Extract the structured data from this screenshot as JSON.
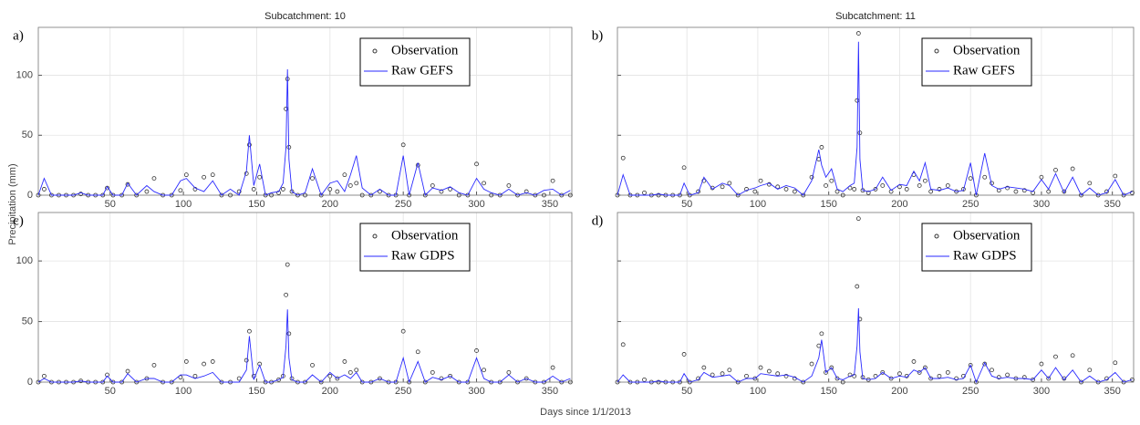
{
  "x_label": "Days since 1/1/2013",
  "y_label": "Precipitation (mm)",
  "chart_data": [
    {
      "type": "line",
      "title": "Subcatchment: 10",
      "panel_label": "a)",
      "legend": "upper right",
      "grid": true,
      "xlim": [
        1,
        365
      ],
      "ylim": [
        0,
        140
      ],
      "xticks": [
        50,
        100,
        150,
        200,
        250,
        300,
        350
      ],
      "yticks": [
        0,
        50,
        100
      ],
      "x": [
        1,
        5,
        10,
        15,
        20,
        25,
        30,
        35,
        40,
        45,
        48,
        52,
        58,
        62,
        68,
        75,
        80,
        86,
        92,
        98,
        102,
        108,
        114,
        120,
        126,
        132,
        138,
        143,
        145,
        148,
        152,
        156,
        160,
        165,
        168,
        170,
        171,
        172,
        174,
        178,
        183,
        188,
        194,
        200,
        205,
        210,
        214,
        218,
        222,
        228,
        234,
        240,
        245,
        250,
        254,
        260,
        265,
        270,
        276,
        282,
        288,
        294,
        300,
        305,
        310,
        316,
        322,
        328,
        334,
        340,
        346,
        352,
        358,
        364
      ],
      "series": [
        {
          "name": "Observation",
          "type": "scatter",
          "color": "#333333",
          "values": [
            0,
            5,
            0,
            0,
            0,
            0,
            1,
            0,
            0,
            0,
            6,
            0,
            0,
            9,
            0,
            3,
            14,
            0,
            0,
            4,
            17,
            5,
            15,
            17,
            0,
            0,
            3,
            18,
            42,
            5,
            15,
            0,
            0,
            2,
            5,
            72,
            97,
            40,
            3,
            0,
            0,
            14,
            0,
            5,
            3,
            17,
            8,
            10,
            0,
            0,
            3,
            0,
            0,
            42,
            0,
            25,
            0,
            8,
            3,
            5,
            0,
            0,
            26,
            10,
            0,
            0,
            8,
            0,
            3,
            0,
            0,
            12,
            0,
            0
          ]
        },
        {
          "name": "Raw GEFS",
          "type": "line",
          "color": "#2a2aff",
          "values": [
            0,
            14,
            0,
            0,
            0,
            0,
            2,
            0,
            0,
            0,
            7,
            0,
            0,
            10,
            0,
            8,
            3,
            0,
            0,
            12,
            14,
            6,
            3,
            12,
            0,
            5,
            0,
            20,
            50,
            8,
            26,
            0,
            2,
            3,
            10,
            40,
            105,
            30,
            3,
            0,
            2,
            22,
            0,
            10,
            12,
            3,
            17,
            33,
            6,
            0,
            5,
            0,
            0,
            33,
            0,
            27,
            0,
            6,
            4,
            7,
            2,
            0,
            14,
            5,
            2,
            0,
            5,
            0,
            2,
            0,
            4,
            5,
            0,
            4
          ]
        }
      ]
    },
    {
      "type": "line",
      "title": "Subcatchment: 11",
      "panel_label": "b)",
      "legend": "upper right",
      "grid": true,
      "xlim": [
        1,
        365
      ],
      "ylim": [
        0,
        140
      ],
      "xticks": [
        50,
        100,
        150,
        200,
        250,
        300,
        350
      ],
      "yticks": [
        0,
        50,
        100
      ],
      "x": [
        1,
        5,
        10,
        15,
        20,
        25,
        30,
        35,
        40,
        45,
        48,
        52,
        58,
        62,
        68,
        75,
        80,
        86,
        92,
        98,
        102,
        108,
        114,
        120,
        126,
        132,
        138,
        143,
        145,
        148,
        152,
        156,
        160,
        165,
        168,
        170,
        171,
        172,
        174,
        178,
        183,
        188,
        194,
        200,
        205,
        210,
        214,
        218,
        222,
        228,
        234,
        240,
        245,
        250,
        254,
        260,
        265,
        270,
        276,
        282,
        288,
        294,
        300,
        305,
        310,
        316,
        322,
        328,
        334,
        340,
        346,
        352,
        358,
        364
      ],
      "series": [
        {
          "name": "Observation",
          "type": "scatter",
          "color": "#333333",
          "values": [
            0,
            31,
            0,
            0,
            2,
            0,
            0,
            0,
            0,
            0,
            23,
            0,
            3,
            12,
            6,
            7,
            10,
            0,
            5,
            3,
            12,
            9,
            7,
            5,
            3,
            0,
            15,
            30,
            40,
            8,
            12,
            3,
            0,
            6,
            5,
            79,
            135,
            52,
            4,
            2,
            5,
            8,
            3,
            7,
            5,
            17,
            8,
            12,
            3,
            5,
            8,
            3,
            5,
            14,
            0,
            15,
            10,
            4,
            6,
            3,
            4,
            2,
            15,
            3,
            21,
            3,
            22,
            0,
            10,
            0,
            3,
            16,
            0,
            2
          ]
        },
        {
          "name": "Raw GEFS",
          "type": "line",
          "color": "#2a2aff",
          "values": [
            0,
            17,
            0,
            0,
            0,
            0,
            1,
            0,
            0,
            0,
            10,
            0,
            2,
            15,
            5,
            10,
            8,
            0,
            4,
            6,
            8,
            10,
            5,
            8,
            6,
            0,
            12,
            38,
            25,
            15,
            22,
            5,
            3,
            8,
            10,
            40,
            128,
            30,
            4,
            3,
            5,
            15,
            4,
            9,
            8,
            20,
            12,
            27,
            5,
            4,
            6,
            3,
            4,
            27,
            0,
            35,
            8,
            5,
            7,
            6,
            5,
            3,
            13,
            5,
            18,
            2,
            15,
            0,
            6,
            0,
            2,
            13,
            0,
            3
          ]
        }
      ]
    },
    {
      "type": "line",
      "panel_label": "c)",
      "legend": "upper right",
      "grid": true,
      "xlim": [
        1,
        365
      ],
      "ylim": [
        0,
        140
      ],
      "xticks": [
        50,
        100,
        150,
        200,
        250,
        300,
        350
      ],
      "yticks": [
        0,
        50,
        100
      ],
      "x": [
        1,
        5,
        10,
        15,
        20,
        25,
        30,
        35,
        40,
        45,
        48,
        52,
        58,
        62,
        68,
        75,
        80,
        86,
        92,
        98,
        102,
        108,
        114,
        120,
        126,
        132,
        138,
        143,
        145,
        148,
        152,
        156,
        160,
        165,
        168,
        170,
        171,
        172,
        174,
        178,
        183,
        188,
        194,
        200,
        205,
        210,
        214,
        218,
        222,
        228,
        234,
        240,
        245,
        250,
        254,
        260,
        265,
        270,
        276,
        282,
        288,
        294,
        300,
        305,
        310,
        316,
        322,
        328,
        334,
        340,
        346,
        352,
        358,
        364
      ],
      "series": [
        {
          "name": "Observation",
          "type": "scatter",
          "color": "#333333",
          "values": [
            0,
            5,
            0,
            0,
            0,
            0,
            1,
            0,
            0,
            0,
            6,
            0,
            0,
            9,
            0,
            3,
            14,
            0,
            0,
            4,
            17,
            5,
            15,
            17,
            0,
            0,
            3,
            18,
            42,
            5,
            15,
            0,
            0,
            2,
            5,
            72,
            97,
            40,
            3,
            0,
            0,
            14,
            0,
            5,
            3,
            17,
            8,
            10,
            0,
            0,
            3,
            0,
            0,
            42,
            0,
            25,
            0,
            8,
            3,
            5,
            0,
            0,
            26,
            10,
            0,
            0,
            8,
            0,
            3,
            0,
            0,
            12,
            0,
            0
          ]
        },
        {
          "name": "Raw GDPS",
          "type": "line",
          "color": "#2a2aff",
          "values": [
            0,
            3,
            0,
            0,
            0,
            0,
            1,
            0,
            0,
            0,
            5,
            0,
            0,
            7,
            0,
            3,
            3,
            0,
            0,
            6,
            6,
            3,
            5,
            8,
            0,
            0,
            0,
            10,
            38,
            2,
            14,
            0,
            0,
            2,
            4,
            30,
            60,
            20,
            2,
            0,
            0,
            6,
            0,
            8,
            3,
            6,
            3,
            8,
            0,
            0,
            3,
            0,
            0,
            20,
            0,
            17,
            0,
            4,
            2,
            5,
            0,
            0,
            20,
            3,
            0,
            0,
            6,
            0,
            3,
            0,
            0,
            5,
            0,
            3
          ]
        }
      ]
    },
    {
      "type": "line",
      "panel_label": "d)",
      "legend": "upper right",
      "grid": true,
      "xlim": [
        1,
        365
      ],
      "ylim": [
        0,
        140
      ],
      "xticks": [
        50,
        100,
        150,
        200,
        250,
        300,
        350
      ],
      "yticks": [
        0,
        50,
        100
      ],
      "x": [
        1,
        5,
        10,
        15,
        20,
        25,
        30,
        35,
        40,
        45,
        48,
        52,
        58,
        62,
        68,
        75,
        80,
        86,
        92,
        98,
        102,
        108,
        114,
        120,
        126,
        132,
        138,
        143,
        145,
        148,
        152,
        156,
        160,
        165,
        168,
        170,
        171,
        172,
        174,
        178,
        183,
        188,
        194,
        200,
        205,
        210,
        214,
        218,
        222,
        228,
        234,
        240,
        245,
        250,
        254,
        260,
        265,
        270,
        276,
        282,
        288,
        294,
        300,
        305,
        310,
        316,
        322,
        328,
        334,
        340,
        346,
        352,
        358,
        364
      ],
      "series": [
        {
          "name": "Observation",
          "type": "scatter",
          "color": "#333333",
          "values": [
            0,
            31,
            0,
            0,
            2,
            0,
            0,
            0,
            0,
            0,
            23,
            0,
            3,
            12,
            6,
            7,
            10,
            0,
            5,
            3,
            12,
            9,
            7,
            5,
            3,
            0,
            15,
            30,
            40,
            8,
            12,
            3,
            0,
            6,
            5,
            79,
            135,
            52,
            4,
            2,
            5,
            8,
            3,
            7,
            5,
            17,
            8,
            12,
            3,
            5,
            8,
            3,
            5,
            14,
            0,
            15,
            10,
            4,
            6,
            3,
            4,
            2,
            15,
            3,
            21,
            3,
            22,
            0,
            10,
            0,
            3,
            16,
            0,
            2
          ]
        },
        {
          "name": "Raw GDPS",
          "type": "line",
          "color": "#2a2aff",
          "values": [
            0,
            6,
            0,
            0,
            0,
            0,
            1,
            0,
            0,
            0,
            7,
            0,
            2,
            8,
            4,
            5,
            6,
            0,
            3,
            3,
            7,
            6,
            5,
            6,
            4,
            0,
            5,
            20,
            35,
            8,
            12,
            3,
            2,
            5,
            6,
            30,
            61,
            25,
            3,
            2,
            3,
            8,
            3,
            5,
            4,
            10,
            8,
            12,
            3,
            3,
            4,
            2,
            3,
            14,
            0,
            16,
            5,
            3,
            4,
            3,
            3,
            2,
            10,
            3,
            12,
            2,
            10,
            0,
            5,
            0,
            2,
            8,
            0,
            2
          ]
        }
      ]
    }
  ]
}
